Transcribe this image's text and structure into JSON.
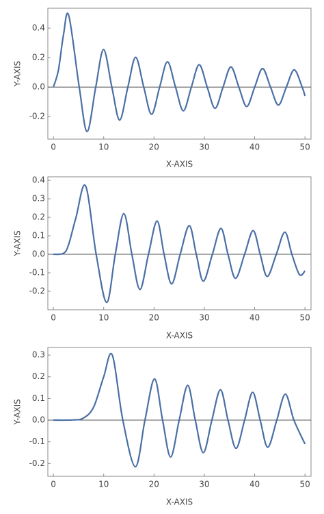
{
  "chart_data": [
    {
      "type": "line",
      "xlabel": "X-AXIS",
      "ylabel": "Y-AXIS",
      "x": [
        0,
        1,
        2,
        3.054,
        5.136,
        6.706,
        8.417,
        9.969,
        11.62,
        13.17,
        14.8,
        16.35,
        17.96,
        19.51,
        21.12,
        22.67,
        24.27,
        25.83,
        27.42,
        28.98,
        30.57,
        32.13,
        33.72,
        35.28,
        36.86,
        38.42,
        40.01,
        41.57,
        43.15,
        44.72,
        46.3,
        47.86,
        49.44,
        50
      ],
      "series": [
        {
          "color": "#4a6fa5",
          "values": [
            0,
            0.115,
            0.353,
            0.486,
            0,
            -0.301,
            0,
            0.255,
            0,
            -0.224,
            0,
            0.202,
            0,
            -0.185,
            0,
            0.172,
            0,
            -0.161,
            0,
            0.152,
            0,
            -0.144,
            0,
            0.137,
            0,
            -0.132,
            0,
            0.126,
            0,
            -0.122,
            0,
            0.117,
            0,
            -0.06
          ]
        }
      ],
      "xlim": [
        -1.1,
        51.2
      ],
      "ylim": [
        -0.353,
        0.535
      ],
      "xticks": [
        0,
        10,
        20,
        30,
        40,
        50
      ],
      "yticks": [
        -0.2,
        {
          "value": 0,
          "label": "0.0"
        },
        0.2,
        0.4
      ]
    },
    {
      "type": "line",
      "xlabel": "X-AXIS",
      "ylabel": "Y-AXIS",
      "x": [
        0,
        2,
        3,
        4.5,
        6.4,
        8.5,
        10.6,
        12.3,
        14,
        15.6,
        17.2,
        18.9,
        20.6,
        22,
        23.5,
        25.2,
        27,
        28.4,
        29.8,
        31.6,
        33.3,
        34.7,
        36.2,
        38,
        39.7,
        41.1,
        42.5,
        44.3,
        46,
        47.4,
        48.9,
        50
      ],
      "series": [
        {
          "color": "#4a6fa5",
          "values": [
            0,
            0.005,
            0.05,
            0.2,
            0.37,
            0,
            -0.26,
            0,
            0.22,
            0,
            -0.19,
            0,
            0.18,
            0,
            -0.16,
            0,
            0.155,
            0,
            -0.145,
            0,
            0.14,
            0,
            -0.13,
            0,
            0.128,
            0,
            -0.12,
            0,
            0.12,
            0,
            -0.11,
            -0.09
          ]
        }
      ],
      "xlim": [
        -1.1,
        51.2
      ],
      "ylim": [
        -0.3,
        0.419
      ],
      "xticks": [
        0,
        10,
        20,
        30,
        40,
        50
      ],
      "yticks": [
        -0.2,
        -0.1,
        {
          "value": 0,
          "label": "0.0"
        },
        0.1,
        0.2,
        0.3,
        0.4
      ]
    },
    {
      "type": "line",
      "xlabel": "X-AXIS",
      "ylabel": "Y-AXIS",
      "x": [
        0,
        4,
        6,
        8,
        10,
        11.7,
        13.8,
        16.3,
        18.2,
        20.1,
        21.7,
        23.3,
        25,
        26.7,
        28.2,
        29.8,
        31.5,
        33.2,
        34.7,
        36.3,
        38,
        39.6,
        41.1,
        42.6,
        44.4,
        46.1,
        47.8,
        50
      ],
      "series": [
        {
          "color": "#4a6fa5",
          "values": [
            0,
            0.001,
            0.01,
            0.06,
            0.2,
            0.3,
            0,
            -0.215,
            0,
            0.19,
            0,
            -0.17,
            0,
            0.16,
            0,
            -0.15,
            0,
            0.14,
            0,
            -0.13,
            0,
            0.128,
            0,
            -0.125,
            0,
            0.12,
            0,
            -0.11
          ]
        }
      ],
      "xlim": [
        -1.1,
        51.2
      ],
      "ylim": [
        -0.259,
        0.335
      ],
      "xticks": [
        0,
        10,
        20,
        30,
        40,
        50
      ],
      "yticks": [
        -0.2,
        -0.1,
        {
          "value": 0,
          "label": "0.0"
        },
        0.1,
        0.2,
        0.3
      ]
    }
  ]
}
